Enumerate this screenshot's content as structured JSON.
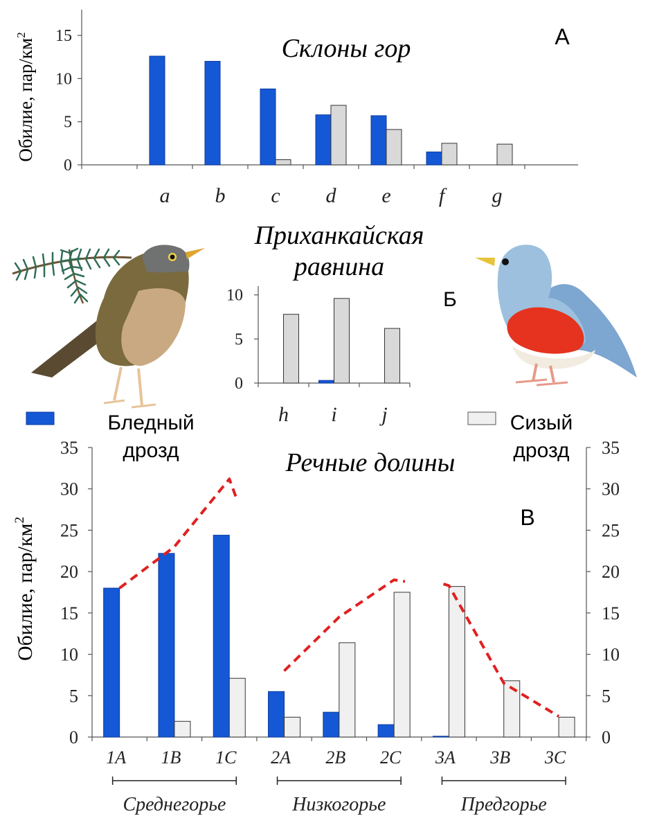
{
  "colors": {
    "pale": "#1558d6",
    "grey": "#d9d9d9",
    "greyC": "#f0f0f0",
    "trend": "#e02020",
    "axis": "#555555"
  },
  "legend": {
    "pale_line1": "Бледный",
    "pale_line2": "дрозд",
    "grey_line1": "Сизый",
    "grey_line2": "дрозд"
  },
  "illustrations": {
    "pale_thrush": "pale-thrush-bird",
    "grey_thrush": "grey-thrush-bird",
    "branch": "fir-branch"
  },
  "chart_data": [
    {
      "id": "A",
      "type": "bar",
      "panel_label": "А",
      "title": "Склоны гор",
      "ylabel": "Обилие, пар/км",
      "ylabel_sup": "2",
      "ylim": [
        0,
        17.5
      ],
      "yticks": [
        "0",
        "5",
        "10",
        "15"
      ],
      "categories": [
        "a",
        "b",
        "c",
        "d",
        "e",
        "f",
        "g"
      ],
      "series": [
        {
          "name": "Бледный дрозд",
          "values": [
            12.6,
            12.0,
            8.8,
            5.8,
            5.7,
            1.5,
            0
          ]
        },
        {
          "name": "Сизый дрозд",
          "values": [
            0,
            0,
            0.6,
            6.9,
            4.1,
            2.5,
            2.4
          ]
        }
      ]
    },
    {
      "id": "B",
      "type": "bar",
      "panel_label": "Б",
      "title_line1": "Приханкайская",
      "title_line2": "равнина",
      "ylim": [
        0,
        11
      ],
      "yticks": [
        "0",
        "5",
        "10"
      ],
      "categories": [
        "h",
        "i",
        "j"
      ],
      "series": [
        {
          "name": "Бледный дрозд",
          "values": [
            0,
            0.3,
            0
          ]
        },
        {
          "name": "Сизый дрозд",
          "values": [
            7.8,
            9.6,
            6.2
          ]
        }
      ]
    },
    {
      "id": "C",
      "type": "bar",
      "panel_label": "В",
      "title": "Речные долины",
      "ylabel": "Обилие, пар/км",
      "ylabel_sup": "2",
      "ylim": [
        0,
        35
      ],
      "yticks": [
        "0",
        "5",
        "10",
        "15",
        "20",
        "25",
        "30",
        "35"
      ],
      "categories": [
        "1A",
        "1B",
        "1C",
        "2A",
        "2B",
        "2C",
        "3A",
        "3B",
        "3C"
      ],
      "groups": [
        {
          "label": "Среднегорье",
          "from": 0,
          "to": 2
        },
        {
          "label": "Низкогорье",
          "from": 3,
          "to": 5
        },
        {
          "label": "Предгорье",
          "from": 6,
          "to": 8
        }
      ],
      "series": [
        {
          "name": "Бледный дрозд",
          "values": [
            18.0,
            22.2,
            24.4,
            5.5,
            3.0,
            1.5,
            0.1,
            0,
            0
          ]
        },
        {
          "name": "Сизый дрозд",
          "values": [
            0,
            1.9,
            7.1,
            2.4,
            11.4,
            17.5,
            18.2,
            6.8,
            2.4
          ]
        }
      ],
      "trends": [
        {
          "x": [
            0,
            1,
            2.0,
            2.15
          ],
          "y": [
            18,
            23,
            31.2,
            28.5
          ]
        },
        {
          "x": [
            3.0,
            4.0,
            5.0,
            5.2
          ],
          "y": [
            8,
            14.5,
            19,
            18.8
          ]
        },
        {
          "x": [
            5.9,
            6.0,
            7.0,
            8.0
          ],
          "y": [
            18.5,
            18.3,
            6.5,
            2.5
          ]
        }
      ]
    }
  ]
}
